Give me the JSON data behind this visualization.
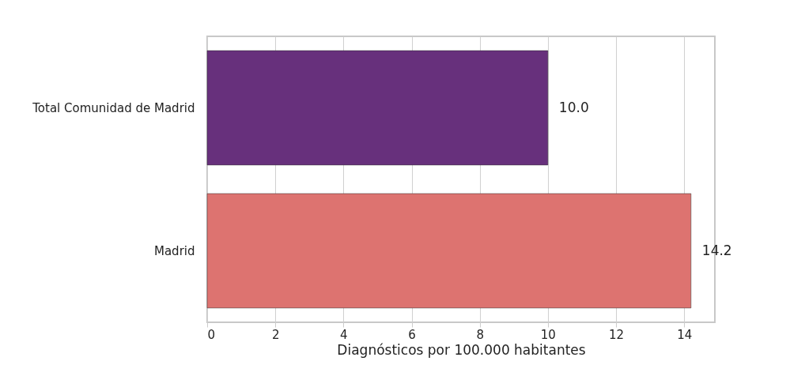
{
  "chart_data": {
    "type": "bar",
    "orientation": "horizontal",
    "xlabel": "Diagnósticos por 100.000 habitantes",
    "categories": [
      "Total Comunidad de Madrid",
      "Madrid"
    ],
    "values": [
      10.0,
      14.2
    ],
    "colors": [
      "#67307c",
      "#dd7370"
    ],
    "xlim": [
      0,
      14.9
    ],
    "xticks": [
      0,
      2,
      4,
      6,
      8,
      10,
      12,
      14
    ],
    "grid": "x",
    "value_labels": [
      "10.0",
      "14.2"
    ],
    "legend": false
  }
}
